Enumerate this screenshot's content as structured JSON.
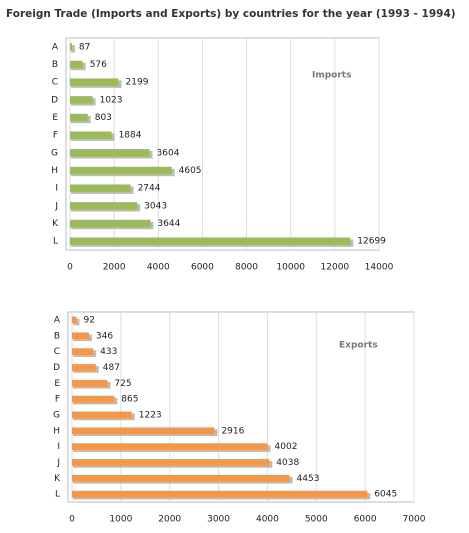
{
  "chart_data": [
    {
      "type": "bar",
      "orientation": "horizontal",
      "title": "Foreign Trade (Imports and Exports) by countries for the year (1993 - 1994)",
      "categories": [
        "A",
        "B",
        "C",
        "D",
        "E",
        "F",
        "G",
        "H",
        "I",
        "J",
        "K",
        "L"
      ],
      "series": [
        {
          "name": "Imports",
          "color": "#9bbb59",
          "values": [
            87,
            576,
            2199,
            1023,
            803,
            1884,
            3604,
            4605,
            2744,
            3043,
            3644,
            12699
          ]
        }
      ],
      "xlim": [
        0,
        14000
      ],
      "xticks": [
        0,
        2000,
        4000,
        6000,
        8000,
        10000,
        12000,
        14000
      ],
      "grid": true
    },
    {
      "type": "bar",
      "orientation": "horizontal",
      "categories": [
        "A",
        "B",
        "C",
        "D",
        "E",
        "F",
        "G",
        "H",
        "I",
        "J",
        "K",
        "L"
      ],
      "series": [
        {
          "name": "Exports",
          "color": "#f79646",
          "values": [
            92,
            346,
            433,
            487,
            725,
            865,
            1223,
            2916,
            4002,
            4038,
            4453,
            6045
          ]
        }
      ],
      "xlim": [
        0,
        7000
      ],
      "xticks": [
        0,
        1000,
        2000,
        3000,
        4000,
        5000,
        6000,
        7000
      ],
      "grid": true
    }
  ]
}
